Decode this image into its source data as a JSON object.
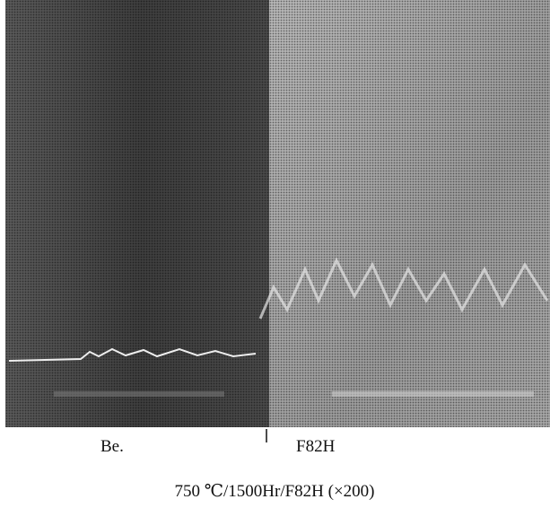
{
  "labels": {
    "left": "Be.",
    "right": "F82H"
  },
  "caption": "750 ℃/1500Hr/F82H (×200)"
}
